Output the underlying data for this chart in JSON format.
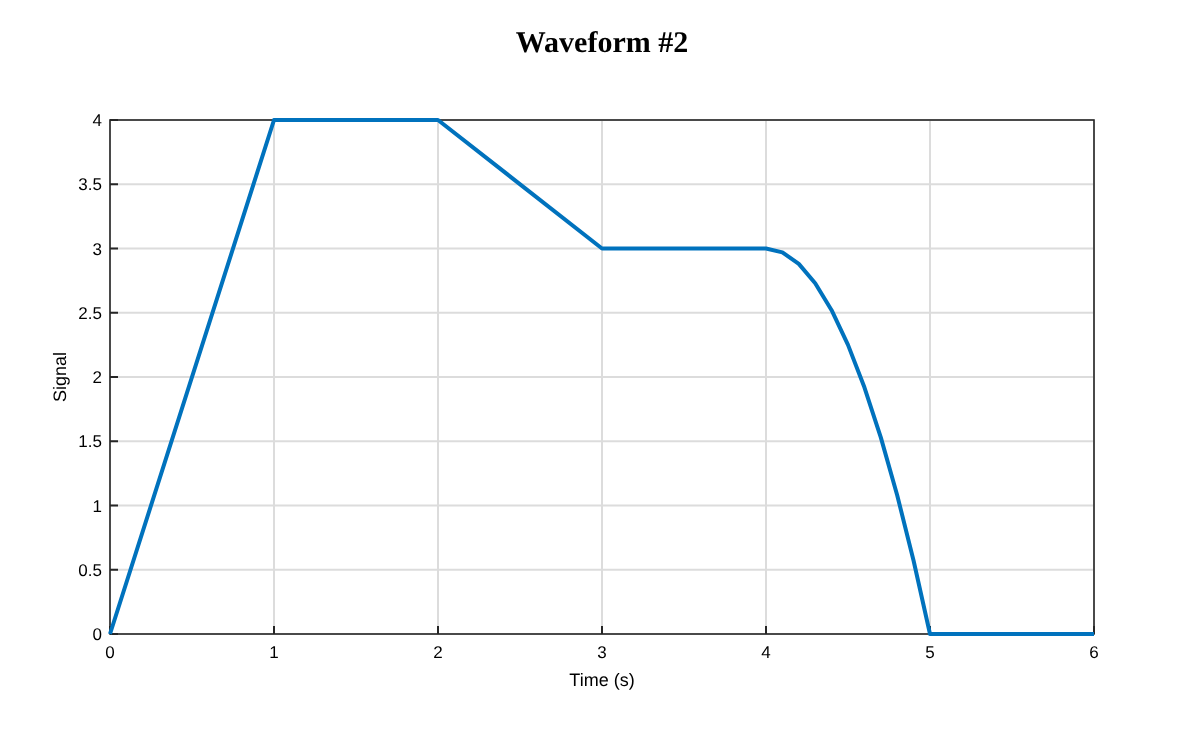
{
  "chart_data": {
    "type": "line",
    "title": "Waveform #2",
    "xlabel": "Time (s)",
    "ylabel": "Signal",
    "x": [
      0,
      1,
      2,
      3,
      4,
      4.1,
      4.2,
      4.3,
      4.4,
      4.5,
      4.6,
      4.7,
      4.8,
      4.9,
      5,
      6
    ],
    "series": [
      {
        "color": "#0072bd",
        "values": [
          0,
          4,
          4,
          3,
          3,
          2.97,
          2.88,
          2.73,
          2.52,
          2.25,
          1.92,
          1.53,
          1.08,
          0.57,
          0,
          0
        ]
      }
    ],
    "xlim": [
      0,
      6
    ],
    "xticks": [
      0,
      1,
      2,
      3,
      4,
      5,
      6
    ],
    "ylim": [
      0,
      4
    ],
    "yticks": [
      0,
      0.5,
      1,
      1.5,
      2,
      2.5,
      3,
      3.5,
      4
    ],
    "grid": true,
    "marker": "none",
    "line_style": "solid"
  }
}
